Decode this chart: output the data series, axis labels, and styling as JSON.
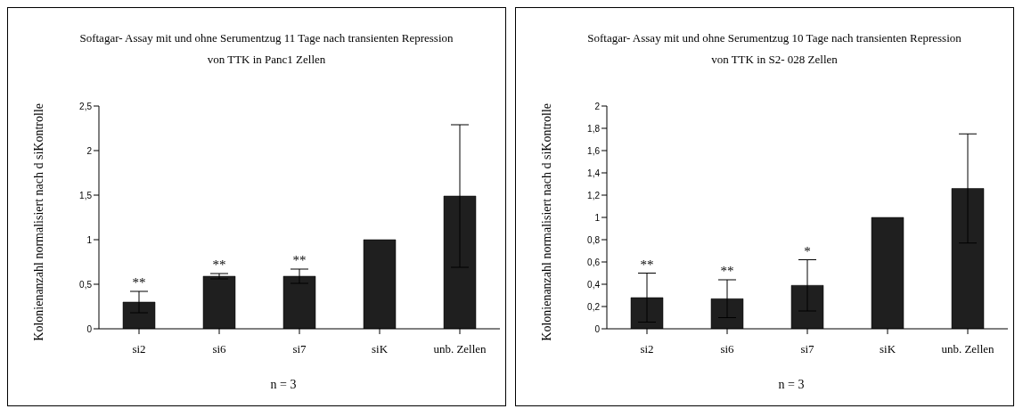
{
  "chart_data": [
    {
      "type": "bar",
      "title": "Softagar- Assay mit und ohne Serumentzug 11 Tage nach transienten Repression von TTK in Panc1 Zellen",
      "xlabel": "n = 3",
      "ylabel": "Kolonienanzahl normalisiert nach d siKontrolle",
      "categories": [
        "si2",
        "si6",
        "si7",
        "siK",
        "unb. Zellen"
      ],
      "values": [
        0.3,
        0.59,
        0.59,
        1.0,
        1.49
      ],
      "errors": [
        0.12,
        0.03,
        0.08,
        null,
        0.8
      ],
      "color": "#1f1f1f",
      "ylim": [
        0,
        2.5
      ],
      "yticks": [
        0,
        {
          "value": 0.5,
          "label": "0,5"
        },
        1,
        {
          "value": 1.5,
          "label": "1,5"
        },
        2,
        {
          "value": 2.5,
          "label": "2,5"
        }
      ],
      "grid": false,
      "legend": false,
      "annotations": [
        {
          "text": "**",
          "x": "si2",
          "y": 0.42
        },
        {
          "text": "**",
          "x": "si6",
          "y": 0.62
        },
        {
          "text": "**",
          "x": "si7",
          "y": 0.67
        }
      ]
    },
    {
      "type": "bar",
      "title": "Softagar- Assay mit und ohne Serumentzug 10 Tage nach transienten Repression von TTK in S2- 028 Zellen",
      "xlabel": "n = 3",
      "ylabel": "Kolonienanzahl normalisiert nach d siKontrolle",
      "categories": [
        "si2",
        "si6",
        "si7",
        "siK",
        "unb. Zellen"
      ],
      "values": [
        0.28,
        0.27,
        0.39,
        1.0,
        1.26
      ],
      "errors": [
        0.22,
        0.17,
        0.23,
        null,
        0.49
      ],
      "color": "#1f1f1f",
      "ylim": [
        0,
        2
      ],
      "yticks": [
        0,
        {
          "value": 0.2,
          "label": "0,2"
        },
        {
          "value": 0.4,
          "label": "0,4"
        },
        {
          "value": 0.6,
          "label": "0,6"
        },
        {
          "value": 0.8,
          "label": "0,8"
        },
        1,
        {
          "value": 1.2,
          "label": "1,2"
        },
        {
          "value": 1.4,
          "label": "1,4"
        },
        {
          "value": 1.6,
          "label": "1,6"
        },
        {
          "value": 1.8,
          "label": "1,8"
        },
        2
      ],
      "grid": false,
      "legend": false,
      "annotations": [
        {
          "text": "**",
          "x": "si2",
          "y": 0.5
        },
        {
          "text": "**",
          "x": "si6",
          "y": 0.44
        },
        {
          "text": "*",
          "x": "si7",
          "y": 0.62
        }
      ]
    }
  ]
}
